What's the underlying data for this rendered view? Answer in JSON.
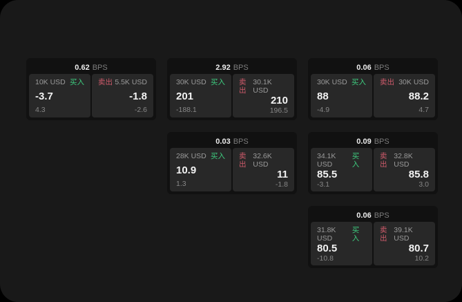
{
  "cards": [
    {
      "bps": "0.62",
      "unit": "BPS",
      "buy": {
        "amount": "10K USD",
        "label": "买入",
        "value": "-3.7",
        "sub": "4.3"
      },
      "sell": {
        "label": "卖出",
        "amount": "5.5K USD",
        "value": "-1.8",
        "sub": "-2.6"
      }
    },
    {
      "bps": "2.92",
      "unit": "BPS",
      "buy": {
        "amount": "30K USD",
        "label": "买入",
        "value": "201",
        "sub": "-188.1"
      },
      "sell": {
        "label": "卖出",
        "amount": "30.1K USD",
        "value": "210",
        "sub": "196.5"
      }
    },
    {
      "bps": "0.06",
      "unit": "BPS",
      "buy": {
        "amount": "30K USD",
        "label": "买入",
        "value": "88",
        "sub": "-4.9"
      },
      "sell": {
        "label": "卖出",
        "amount": "30K USD",
        "value": "88.2",
        "sub": "4.7"
      }
    },
    {
      "bps": "0.03",
      "unit": "BPS",
      "buy": {
        "amount": "28K USD",
        "label": "买入",
        "value": "10.9",
        "sub": "1.3"
      },
      "sell": {
        "label": "卖出",
        "amount": "32.6K USD",
        "value": "11",
        "sub": "-1.8"
      }
    },
    {
      "bps": "0.09",
      "unit": "BPS",
      "buy": {
        "amount": "34.1K USD",
        "label": "买入",
        "value": "85.5",
        "sub": "-3.1"
      },
      "sell": {
        "label": "卖出",
        "amount": "32.8K USD",
        "value": "85.8",
        "sub": "3.0"
      }
    },
    {
      "bps": "0.06",
      "unit": "BPS",
      "buy": {
        "amount": "31.8K USD",
        "label": "买入",
        "value": "80.5",
        "sub": "-10.8"
      },
      "sell": {
        "label": "卖出",
        "amount": "39.1K USD",
        "value": "80.7",
        "sub": "10.2"
      }
    }
  ],
  "colors": {
    "buy_green": "#3ecb7e",
    "sell_red": "#cf5b6b",
    "panel_bg": "#191919",
    "card_bg": "#111111",
    "cell_bg": "#282828"
  }
}
